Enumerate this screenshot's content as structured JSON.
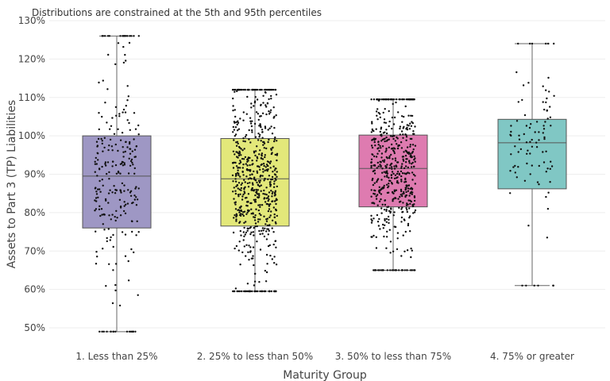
{
  "chart_data": {
    "type": "box",
    "annotation": "Distributions are constrained at the 5th and 95th percentiles",
    "xlabel": "Maturity Group",
    "ylabel": "Assets to Part 3 (TP) Liabilities",
    "ylim": [
      48,
      130
    ],
    "yticks": [
      50,
      60,
      70,
      80,
      90,
      100,
      110,
      120,
      130
    ],
    "ytick_suffix": "%",
    "groups": [
      {
        "label": "1. Less than 25%",
        "color": "#9e97c4",
        "min": 49,
        "q1": 76,
        "median": 89.5,
        "q3": 100,
        "max": 126,
        "points": 260
      },
      {
        "label": "2. 25% to less than 50%",
        "color": "#e3e87a",
        "min": 59.5,
        "q1": 76.5,
        "median": 88.8,
        "q3": 99.3,
        "max": 112,
        "points": 650
      },
      {
        "label": "3. 50% to less than 75%",
        "color": "#de7bb0",
        "min": 65,
        "q1": 81.5,
        "median": 91.5,
        "q3": 100.2,
        "max": 109.5,
        "points": 560
      },
      {
        "label": "4. 75% or greater",
        "color": "#80c7c4",
        "min": 61,
        "q1": 86.2,
        "median": 98.2,
        "q3": 104.3,
        "max": 124,
        "points": 95
      }
    ]
  }
}
